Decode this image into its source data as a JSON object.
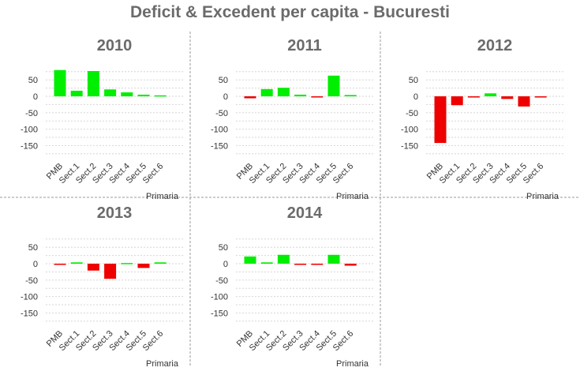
{
  "title": "Deficit & Excedent per capita - Bucuresti",
  "colors": {
    "positive": "#00ee00",
    "negative": "#ee0000",
    "title": "#6b6b6b",
    "grid": "#d6d6d6",
    "separator": "#9a9a9a"
  },
  "chart_data": [
    {
      "type": "bar",
      "title": "2010",
      "categories": [
        "PMB",
        "Sect.1",
        "Sect.2",
        "Sect.3",
        "Sect.4",
        "Sect.5",
        "Sect.6"
      ],
      "values": [
        80,
        17,
        77,
        21,
        12,
        5,
        3
      ],
      "xlabel": "Primaria",
      "ylabel": "",
      "ylim": [
        -180,
        100
      ],
      "yticks": [
        50,
        0,
        -50,
        -100,
        -150
      ],
      "grid": true
    },
    {
      "type": "bar",
      "title": "2011",
      "categories": [
        "PMB",
        "Sect.1",
        "Sect.2",
        "Sect.3",
        "Sect.4",
        "Sect.5",
        "Sect.6"
      ],
      "values": [
        -6,
        22,
        26,
        5,
        -2,
        63,
        4
      ],
      "xlabel": "Primaria",
      "ylabel": "",
      "ylim": [
        -180,
        100
      ],
      "yticks": [
        50,
        0,
        -50,
        -100,
        -150
      ],
      "grid": true
    },
    {
      "type": "bar",
      "title": "2012",
      "categories": [
        "PMB",
        "Sect.1",
        "Sect.2",
        "Sect.3",
        "Sect.4",
        "Sect.5",
        "Sect.6"
      ],
      "values": [
        -142,
        -27,
        -3,
        9,
        -8,
        -31,
        -3
      ],
      "xlabel": "Primaria",
      "ylabel": "",
      "ylim": [
        -180,
        100
      ],
      "yticks": [
        50,
        0,
        -50,
        -100,
        -150
      ],
      "grid": true
    },
    {
      "type": "bar",
      "title": "2013",
      "categories": [
        "PMB",
        "Sect.1",
        "Sect.2",
        "Sect.3",
        "Sect.4",
        "Sect.5",
        "Sect.6"
      ],
      "values": [
        -2,
        4,
        -21,
        -46,
        2,
        -13,
        4
      ],
      "xlabel": "Primaria",
      "ylabel": "",
      "ylim": [
        -180,
        100
      ],
      "yticks": [
        50,
        0,
        -50,
        -100,
        -150
      ],
      "grid": true
    },
    {
      "type": "bar",
      "title": "2014",
      "categories": [
        "PMB",
        "Sect.1",
        "Sect.2",
        "Sect.3",
        "Sect.4",
        "Sect.5",
        "Sect.6"
      ],
      "values": [
        22,
        4,
        27,
        -2,
        -2,
        27,
        -6
      ],
      "xlabel": "Primaria",
      "ylabel": "",
      "ylim": [
        -180,
        100
      ],
      "yticks": [
        50,
        0,
        -50,
        -100,
        -150
      ],
      "grid": true
    }
  ]
}
